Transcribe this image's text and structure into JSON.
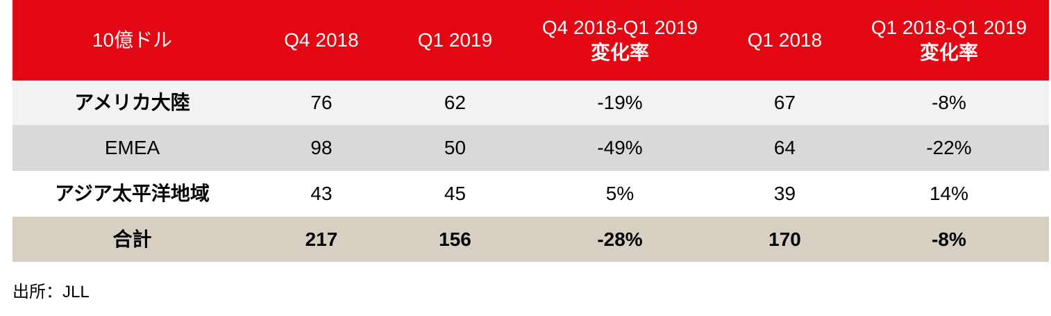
{
  "table": {
    "headers": [
      {
        "line1": "10億ドル",
        "line2": ""
      },
      {
        "line1": "Q4 2018",
        "line2": ""
      },
      {
        "line1": "Q1 2019",
        "line2": ""
      },
      {
        "line1": "Q4 2018-Q1 2019",
        "line2": "変化率"
      },
      {
        "line1": "Q1 2018",
        "line2": ""
      },
      {
        "line1": "Q1 2018-Q1 2019",
        "line2": "変化率"
      }
    ],
    "rows": [
      {
        "region": "アメリカ大陸",
        "q4_2018": "76",
        "q1_2019": "62",
        "chg_q4_q1": "-19%",
        "q1_2018": "67",
        "chg_yoy": "-8%"
      },
      {
        "region": "EMEA",
        "q4_2018": "98",
        "q1_2019": "50",
        "chg_q4_q1": "-49%",
        "q1_2018": "64",
        "chg_yoy": "-22%"
      },
      {
        "region": "アジア太平洋地域",
        "q4_2018": "43",
        "q1_2019": "45",
        "chg_q4_q1": "5%",
        "q1_2018": "39",
        "chg_yoy": "14%"
      }
    ],
    "total": {
      "region": "合計",
      "q4_2018": "217",
      "q1_2019": "156",
      "chg_q4_q1": "-28%",
      "q1_2018": "170",
      "chg_yoy": "-8%"
    }
  },
  "source": "出所：JLL",
  "colors": {
    "header_bg": "#e30613",
    "row1_bg": "#f2f2f2",
    "row2_bg": "#d9d9d9",
    "row3_bg": "#ffffff",
    "total_bg": "#d6cfc2"
  }
}
